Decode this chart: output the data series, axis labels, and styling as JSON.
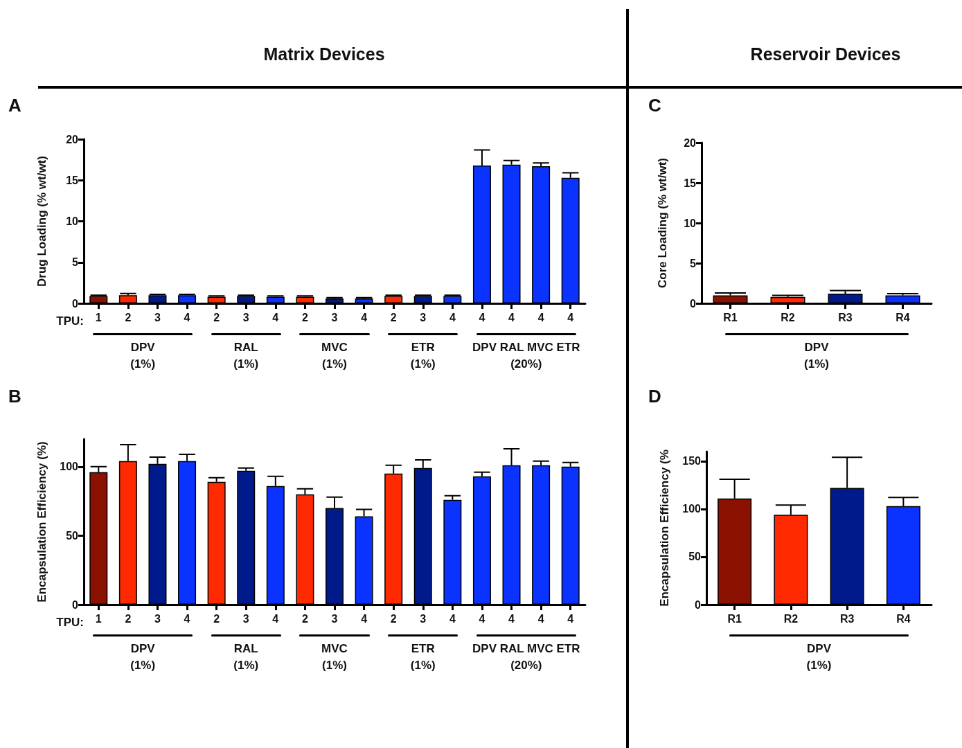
{
  "chart_data": [
    {
      "type": "bar",
      "title": "Matrix Devices",
      "ylabel": "Drug Loading (% wt/wt)",
      "categories": [
        "1",
        "2",
        "3",
        "4",
        "2",
        "3",
        "4",
        "2",
        "3",
        "4",
        "2",
        "3",
        "4",
        "4",
        "4",
        "4",
        "4"
      ],
      "values": [
        0.9,
        1.0,
        1.0,
        1.0,
        0.8,
        0.9,
        0.8,
        0.8,
        0.6,
        0.6,
        0.9,
        0.9,
        0.9,
        16.8,
        16.9,
        16.7,
        15.3
      ],
      "errors": [
        [
          0.9,
          1.0
        ],
        [
          1.0,
          1.2
        ],
        [
          1.0,
          1.1
        ],
        [
          1.0,
          1.1
        ],
        [
          0.8,
          0.9
        ],
        [
          0.9,
          1.0
        ],
        [
          0.8,
          0.9
        ],
        [
          0.8,
          0.9
        ],
        [
          0.6,
          0.7
        ],
        [
          0.6,
          0.7
        ],
        [
          0.9,
          1.0
        ],
        [
          0.9,
          1.0
        ],
        [
          0.9,
          1.0
        ],
        [
          16.8,
          18.7
        ],
        [
          16.9,
          17.4
        ],
        [
          16.7,
          17.1
        ],
        [
          15.3,
          15.9
        ]
      ],
      "colors": [
        "#8b1200",
        "#ff2a00",
        "#001a8c",
        "#0a33ff",
        "#ff2a00",
        "#001a8c",
        "#0a33ff",
        "#ff2a00",
        "#001a8c",
        "#0a33ff",
        "#ff2a00",
        "#001a8c",
        "#0a33ff",
        "#0a33ff",
        "#0a33ff",
        "#0a33ff",
        "#0a33ff"
      ],
      "ylim": [
        0,
        20
      ],
      "yticks": [
        0,
        5,
        10,
        15,
        20
      ],
      "grid": false,
      "annotations": [
        "A",
        "TPU:",
        "DPV\n(1%)",
        "RAL\n(1%)",
        "MVC\n(1%)",
        "ETR\n(1%)",
        "DPV RAL MVC ETR\n(20%)"
      ]
    },
    {
      "type": "bar",
      "ylabel": "Encapsulation Efficiency (%)",
      "categories": [
        "1",
        "2",
        "3",
        "4",
        "2",
        "3",
        "4",
        "2",
        "3",
        "4",
        "2",
        "3",
        "4",
        "4",
        "4",
        "4",
        "4"
      ],
      "values": [
        96,
        104,
        102,
        104,
        89,
        97,
        86,
        80,
        70,
        64,
        95,
        99,
        76,
        93,
        101,
        101,
        100
      ],
      "errors": [
        [
          96,
          100
        ],
        [
          104,
          116
        ],
        [
          102,
          107
        ],
        [
          104,
          109
        ],
        [
          89,
          92
        ],
        [
          97,
          99
        ],
        [
          86,
          93
        ],
        [
          80,
          84
        ],
        [
          70,
          78
        ],
        [
          64,
          69
        ],
        [
          95,
          101
        ],
        [
          99,
          105
        ],
        [
          76,
          79
        ],
        [
          93,
          96
        ],
        [
          101,
          113
        ],
        [
          101,
          104
        ],
        [
          100,
          103
        ]
      ],
      "colors": [
        "#8b1200",
        "#ff2a00",
        "#001a8c",
        "#0a33ff",
        "#ff2a00",
        "#001a8c",
        "#0a33ff",
        "#ff2a00",
        "#001a8c",
        "#0a33ff",
        "#ff2a00",
        "#001a8c",
        "#0a33ff",
        "#0a33ff",
        "#0a33ff",
        "#0a33ff",
        "#0a33ff"
      ],
      "ylim": [
        0,
        120
      ],
      "yticks": [
        0,
        50,
        100
      ],
      "grid": false,
      "annotations": [
        "B",
        "TPU:",
        "DPV\n(1%)",
        "RAL\n(1%)",
        "MVC\n(1%)",
        "ETR\n(1%)",
        "DPV RAL MVC ETR\n(20%)"
      ]
    },
    {
      "type": "bar",
      "title": "Reservoir Devices",
      "ylabel": "Core Loading (% wt/wt)",
      "categories": [
        "R1",
        "R2",
        "R3",
        "R4"
      ],
      "values": [
        1.0,
        0.8,
        1.2,
        1.0
      ],
      "errors": [
        [
          1.0,
          1.3
        ],
        [
          0.8,
          1.0
        ],
        [
          1.2,
          1.6
        ],
        [
          1.0,
          1.2
        ]
      ],
      "colors": [
        "#8b1200",
        "#ff2a00",
        "#001a8c",
        "#0a33ff"
      ],
      "ylim": [
        0,
        20
      ],
      "yticks": [
        0,
        5,
        10,
        15,
        20
      ],
      "grid": false,
      "annotations": [
        "C",
        "DPV\n(1%)"
      ]
    },
    {
      "type": "bar",
      "ylabel": "Encapsulation Efficiency (%",
      "categories": [
        "R1",
        "R2",
        "R3",
        "R4"
      ],
      "values": [
        111,
        94,
        122,
        103
      ],
      "errors": [
        [
          111,
          131
        ],
        [
          94,
          104
        ],
        [
          122,
          154
        ],
        [
          103,
          112
        ]
      ],
      "colors": [
        "#8b1200",
        "#ff2a00",
        "#001a8c",
        "#0a33ff"
      ],
      "ylim": [
        0,
        160
      ],
      "yticks": [
        0,
        50,
        100,
        150
      ],
      "grid": false,
      "annotations": [
        "D",
        "DPV\n(1%)"
      ]
    }
  ]
}
